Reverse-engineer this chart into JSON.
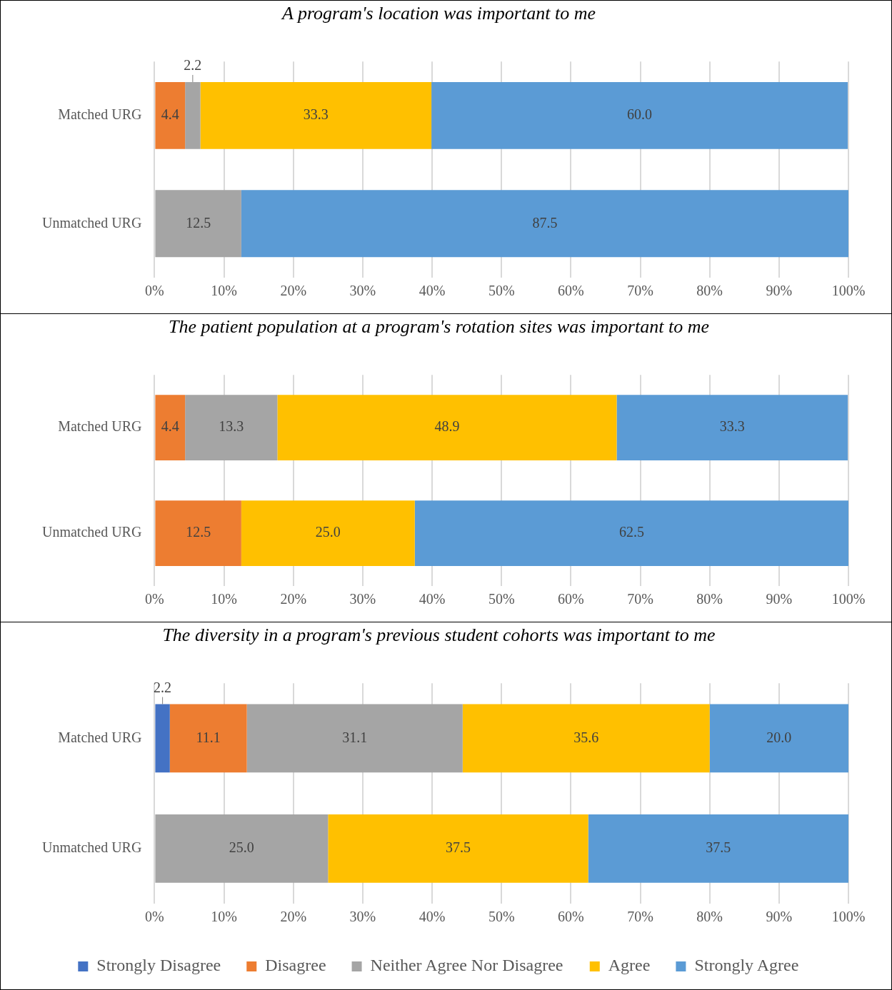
{
  "chart_data": [
    {
      "type": "bar",
      "orientation": "horizontal",
      "stacked": true,
      "title": "A program's location was important to me",
      "categories": [
        "Matched URG",
        "Unmatched URG"
      ],
      "xlim": [
        0,
        100
      ],
      "xticks": [
        {
          "value": 0,
          "label": "0%"
        },
        {
          "value": 10,
          "label": "10%"
        },
        {
          "value": 20,
          "label": "20%"
        },
        {
          "value": 30,
          "label": "30%"
        },
        {
          "value": 40,
          "label": "40%"
        },
        {
          "value": 50,
          "label": "50%"
        },
        {
          "value": 60,
          "label": "60%"
        },
        {
          "value": 70,
          "label": "70%"
        },
        {
          "value": 80,
          "label": "80%"
        },
        {
          "value": 90,
          "label": "90%"
        },
        {
          "value": 100,
          "label": "100%"
        }
      ],
      "grid": "x",
      "legend": false,
      "series": [
        {
          "color": "#4472c4",
          "values": [
            null,
            null
          ],
          "value_labels": [
            null,
            null
          ]
        },
        {
          "color": "#ed7d31",
          "values": [
            4.4,
            null
          ],
          "value_labels": [
            "4.4",
            null
          ]
        },
        {
          "color": "#a5a5a5",
          "values": [
            2.2,
            12.5
          ],
          "value_labels": [
            "2.2",
            "12.5"
          ]
        },
        {
          "color": "#ffc000",
          "values": [
            33.3,
            null
          ],
          "value_labels": [
            "33.3",
            null
          ]
        },
        {
          "color": "#5b9bd5",
          "values": [
            60.0,
            87.5
          ],
          "value_labels": [
            "60.0",
            "87.5"
          ]
        }
      ]
    },
    {
      "type": "bar",
      "orientation": "horizontal",
      "stacked": true,
      "title": "The patient population at a program's rotation sites was important to me",
      "categories": [
        "Matched URG",
        "Unmatched URG"
      ],
      "xlim": [
        0,
        100
      ],
      "xticks": [
        {
          "value": 0,
          "label": "0%"
        },
        {
          "value": 10,
          "label": "10%"
        },
        {
          "value": 20,
          "label": "20%"
        },
        {
          "value": 30,
          "label": "30%"
        },
        {
          "value": 40,
          "label": "40%"
        },
        {
          "value": 50,
          "label": "50%"
        },
        {
          "value": 60,
          "label": "60%"
        },
        {
          "value": 70,
          "label": "70%"
        },
        {
          "value": 80,
          "label": "80%"
        },
        {
          "value": 90,
          "label": "90%"
        },
        {
          "value": 100,
          "label": "100%"
        }
      ],
      "grid": "x",
      "legend": false,
      "series": [
        {
          "color": "#4472c4",
          "values": [
            null,
            null
          ],
          "value_labels": [
            null,
            null
          ]
        },
        {
          "color": "#ed7d31",
          "values": [
            4.4,
            12.5
          ],
          "value_labels": [
            "4.4",
            "12.5"
          ]
        },
        {
          "color": "#a5a5a5",
          "values": [
            13.3,
            null
          ],
          "value_labels": [
            "13.3",
            null
          ]
        },
        {
          "color": "#ffc000",
          "values": [
            48.9,
            25.0
          ],
          "value_labels": [
            "48.9",
            "25.0"
          ]
        },
        {
          "color": "#5b9bd5",
          "values": [
            33.3,
            62.5
          ],
          "value_labels": [
            "33.3",
            "62.5"
          ]
        }
      ]
    },
    {
      "type": "bar",
      "orientation": "horizontal",
      "stacked": true,
      "title": "The diversity in a program's previous student cohorts was important to me",
      "categories": [
        "Matched URG",
        "Unmatched URG"
      ],
      "xlim": [
        0,
        100
      ],
      "xticks": [
        {
          "value": 0,
          "label": "0%"
        },
        {
          "value": 10,
          "label": "10%"
        },
        {
          "value": 20,
          "label": "20%"
        },
        {
          "value": 30,
          "label": "30%"
        },
        {
          "value": 40,
          "label": "40%"
        },
        {
          "value": 50,
          "label": "50%"
        },
        {
          "value": 60,
          "label": "60%"
        },
        {
          "value": 70,
          "label": "70%"
        },
        {
          "value": 80,
          "label": "80%"
        },
        {
          "value": 90,
          "label": "90%"
        },
        {
          "value": 100,
          "label": "100%"
        }
      ],
      "grid": "x",
      "legend": "bottom",
      "series": [
        {
          "name": "Strongly Disagree",
          "color": "#4472c4",
          "values": [
            2.2,
            null
          ],
          "value_labels": [
            "2.2",
            null
          ]
        },
        {
          "name": "Disagree",
          "color": "#ed7d31",
          "values": [
            11.1,
            null
          ],
          "value_labels": [
            "11.1",
            null
          ]
        },
        {
          "name": "Neither Agree Nor Disagree",
          "color": "#a5a5a5",
          "values": [
            31.1,
            25.0
          ],
          "value_labels": [
            "31.1",
            "25.0"
          ]
        },
        {
          "name": "Agree",
          "color": "#ffc000",
          "values": [
            35.6,
            37.5
          ],
          "value_labels": [
            "35.6",
            "37.5"
          ]
        },
        {
          "name": "Strongly Agree",
          "color": "#5b9bd5",
          "values": [
            20.0,
            37.5
          ],
          "value_labels": [
            "20.0",
            "37.5"
          ]
        }
      ]
    }
  ]
}
